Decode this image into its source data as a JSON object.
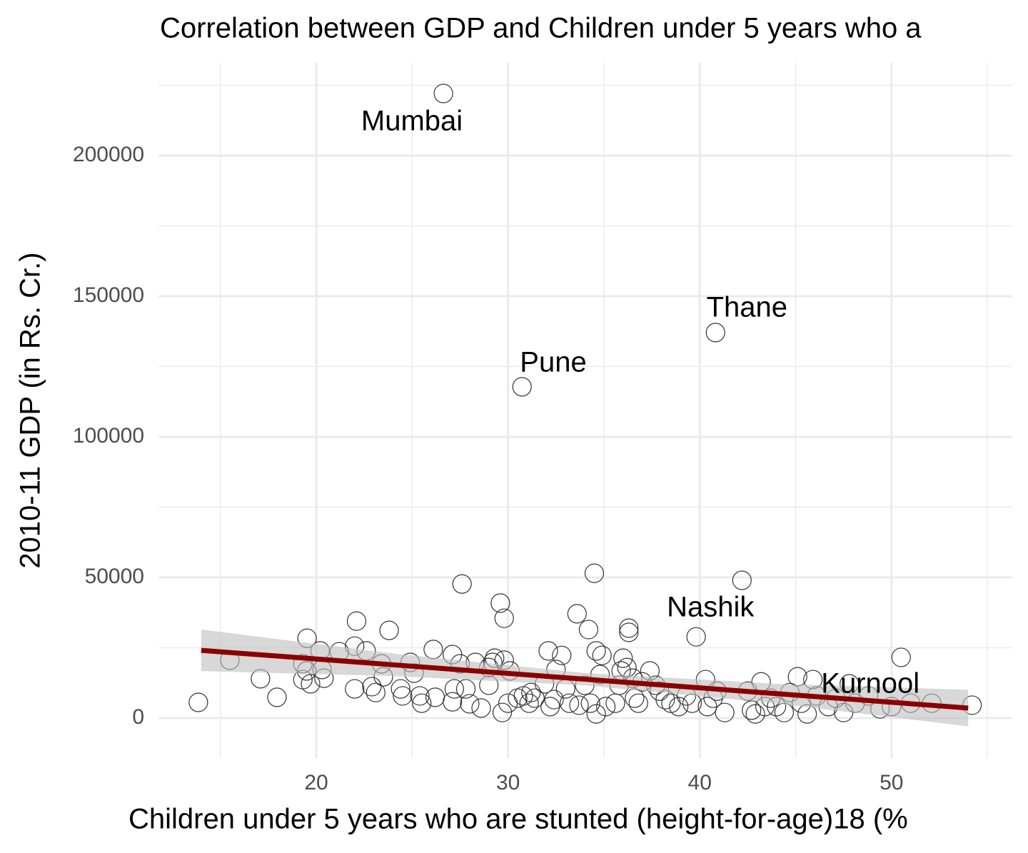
{
  "chart_data": {
    "type": "scatter",
    "title": "Correlation between GDP and Children under 5 years who a",
    "x_label": "Children under 5 years who are stunted (height-for-age)18 (%",
    "y_label": "2010-11 GDP (in Rs. Cr.)",
    "xlim": [
      11.77,
      56.3
    ],
    "ylim": [
      -14200,
      233000
    ],
    "xticks": [
      20,
      30,
      40,
      50
    ],
    "yticks": [
      0,
      50000,
      100000,
      150000,
      200000
    ],
    "x_minor_grid": [
      15,
      25,
      35,
      45,
      55
    ],
    "y_minor_grid": [
      25000,
      75000,
      125000,
      175000,
      225000
    ],
    "grid": true,
    "color": "#333333",
    "x": [
      26.63,
      30.73,
      40.82,
      39.81,
      13.85,
      15.49,
      17.09,
      17.95,
      19.52,
      19.3,
      19.5,
      19.3,
      19.7,
      20.2,
      20.3,
      20.4,
      21.2,
      22.0,
      22.1,
      22.0,
      22.6,
      22.9,
      23.1,
      23.4,
      23.5,
      23.8,
      24.4,
      24.5,
      24.9,
      25.1,
      25.4,
      25.5,
      26.1,
      26.2,
      27.1,
      27.1,
      27.2,
      27.5,
      27.6,
      27.8,
      28.0,
      28.3,
      28.6,
      29.0,
      29.2,
      29.3,
      29.0,
      29.6,
      29.7,
      29.8,
      29.8,
      30.0,
      30.1,
      30.5,
      30.8,
      31.1,
      31.2,
      31.4,
      31.9,
      32.1,
      32.2,
      32.4,
      32.5,
      32.8,
      33.0,
      33.2,
      33.6,
      33.7,
      34.0,
      34.2,
      34.3,
      34.5,
      34.6,
      34.6,
      34.8,
      34.9,
      35.1,
      35.6,
      35.8,
      35.9,
      36.0,
      36.2,
      36.3,
      36.3,
      36.5,
      36.6,
      36.8,
      37.0,
      37.4,
      37.7,
      37.9,
      38.2,
      38.5,
      38.9,
      39.3,
      39.6,
      40.3,
      40.4,
      40.7,
      40.9,
      41.3,
      42.2,
      42.5,
      42.7,
      42.9,
      43.2,
      43.4,
      43.7,
      44.0,
      44.4,
      44.7,
      45.1,
      45.3,
      45.6,
      45.9,
      46.1,
      46.7,
      47.1,
      47.5,
      47.8,
      48.1,
      48.8,
      49.4,
      50.0,
      50.5,
      51.0,
      52.1,
      54.2
    ],
    "values": [
      222100,
      117800,
      137100,
      28900,
      5600,
      20600,
      14000,
      7400,
      28400,
      19300,
      16800,
      13700,
      12200,
      23900,
      17300,
      14200,
      23600,
      25600,
      34500,
      10400,
      23900,
      11200,
      9100,
      19300,
      14700,
      31200,
      10400,
      7900,
      19800,
      16000,
      7900,
      5300,
      24400,
      7400,
      22600,
      5800,
      10400,
      19300,
      47700,
      10400,
      5100,
      19800,
      3600,
      18000,
      19800,
      21300,
      11700,
      40900,
      2000,
      35500,
      20600,
      5300,
      16800,
      7100,
      7900,
      5300,
      9100,
      7100,
      12200,
      23900,
      4100,
      6600,
      17300,
      22300,
      10400,
      5300,
      37100,
      4600,
      11700,
      31500,
      5300,
      51500,
      23900,
      1500,
      15500,
      22300,
      4100,
      5300,
      11700,
      16800,
      21300,
      18000,
      32000,
      30500,
      14200,
      7100,
      5300,
      12900,
      16800,
      11700,
      9600,
      6600,
      5300,
      4100,
      7900,
      5300,
      13700,
      4100,
      7100,
      9600,
      2000,
      49000,
      9600,
      2800,
      1500,
      12900,
      4100,
      7100,
      4100,
      2000,
      9100,
      14700,
      5300,
      1500,
      13700,
      7900,
      4100,
      7100,
      2000,
      12200,
      5300,
      7900,
      3300,
      4100,
      21600,
      5300,
      5300,
      4600
    ],
    "trend": {
      "color": "#8b0000",
      "band_color": "#bebebe",
      "x": [
        14,
        24,
        34,
        44,
        54
      ],
      "y": [
        24100,
        18970,
        13840,
        8710,
        3580
      ],
      "lower": [
        16700,
        14970,
        11640,
        5210,
        -2920
      ],
      "upper": [
        31500,
        22970,
        16040,
        12210,
        10080
      ]
    },
    "annotations": [
      {
        "text": "Mumbai",
        "x": 24.99,
        "y": 211700
      },
      {
        "text": "Pune",
        "x": 32.36,
        "y": 125900
      },
      {
        "text": "Thane",
        "x": 42.46,
        "y": 145400
      },
      {
        "text": "Nashik",
        "x": 40.56,
        "y": 38800
      },
      {
        "text": "Kurnool",
        "x": 48.9,
        "y": 11700
      }
    ]
  }
}
